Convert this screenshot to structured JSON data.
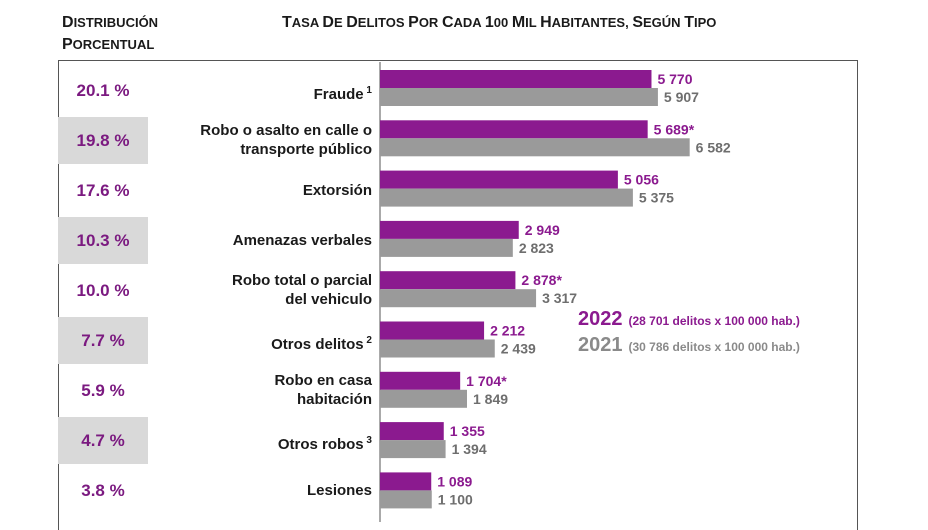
{
  "header": {
    "left_title": "Distribución porcentual",
    "right_title": "Tasa de delitos por cada 100 mil habitantes, según tipo"
  },
  "colors": {
    "series_2022": "#8b1a8f",
    "series_2021": "#9a9a9a",
    "pct_text": "#7b1a80",
    "shade": "#d9d9d9"
  },
  "chart_data": {
    "type": "bar",
    "orientation": "horizontal",
    "title": "Tasa de delitos por cada 100 mil habitantes, según tipo",
    "categories": [
      {
        "label": "Fraude",
        "sup": "1"
      },
      {
        "label": "Robo o asalto en calle o transporte público",
        "sup": ""
      },
      {
        "label": "Extorsión",
        "sup": ""
      },
      {
        "label": "Amenazas verbales",
        "sup": ""
      },
      {
        "label": "Robo total o parcial del vehiculo",
        "sup": ""
      },
      {
        "label": "Otros delitos",
        "sup": "2"
      },
      {
        "label": "Robo en casa habitación",
        "sup": ""
      },
      {
        "label": "Otros robos",
        "sup": "3"
      },
      {
        "label": "Lesiones",
        "sup": ""
      }
    ],
    "series": [
      {
        "name": "2022",
        "note": "(28 701 delitos x 100 000 hab.)",
        "values": [
          5770,
          5689,
          5056,
          2949,
          2878,
          2212,
          1704,
          1355,
          1089
        ],
        "labels": [
          "5 770",
          "5 689*",
          "5 056",
          "2 949",
          "2 878*",
          "2 212",
          "1 704*",
          "1 355",
          "1 089"
        ]
      },
      {
        "name": "2021",
        "note": "(30 786 delitos x 100 000 hab.)",
        "values": [
          5907,
          6582,
          5375,
          2823,
          3317,
          2439,
          1849,
          1394,
          1100
        ],
        "labels": [
          "5 907",
          "6 582",
          "5 375",
          "2 823",
          "3 317",
          "2 439",
          "1 849",
          "1 394",
          "1 100"
        ]
      }
    ],
    "percent_distribution": [
      "20.1 %",
      "19.8 %",
      "17.6 %",
      "10.3 %",
      "10.0 %",
      "7.7 %",
      "5.9 %",
      "4.7 %",
      "3.8 %"
    ],
    "xlim": [
      0,
      7000
    ]
  }
}
